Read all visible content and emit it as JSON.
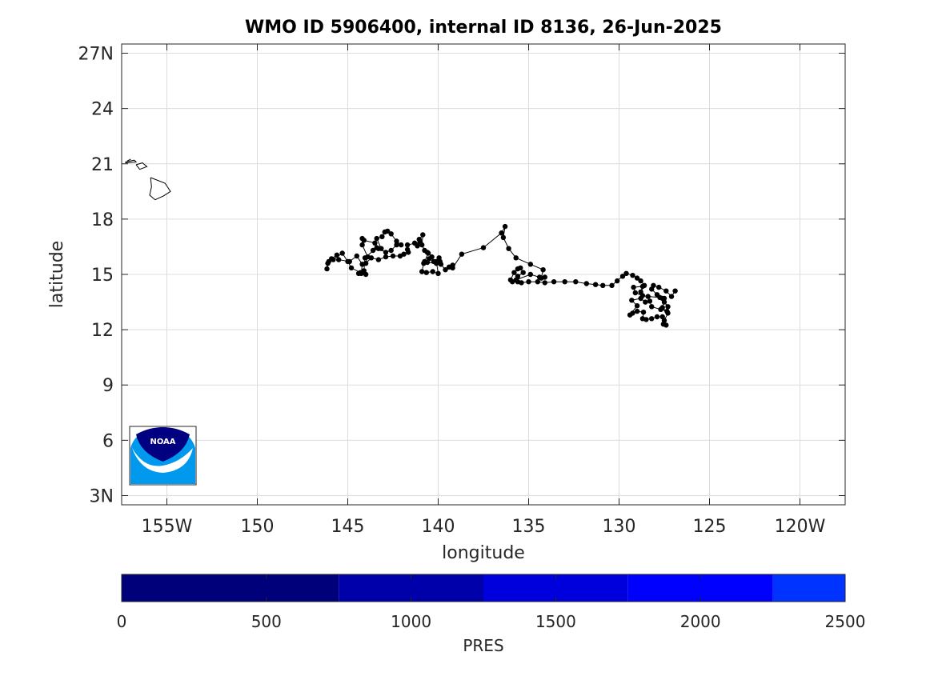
{
  "title": "WMO ID 5906400, internal ID 8136, 26-Jun-2025",
  "logo_text": "NOAA",
  "icons": {
    "logo": "noaa-logo-icon"
  },
  "colors": {
    "track": "#000000",
    "grid": "#dcdcdc",
    "frame": "#262626",
    "logo_top": "#000080",
    "logo_bottom": "#0099ee"
  },
  "chart_data": {
    "type": "scatter",
    "title": "WMO ID 5906400, internal ID 8136, 26-Jun-2025",
    "xlabel": "longitude",
    "ylabel": "latitude",
    "xlim": [
      -157.5,
      -117.5
    ],
    "ylim": [
      2.5,
      27.5
    ],
    "grid": true,
    "x_ticks": [
      {
        "value": -155,
        "label": "155W"
      },
      {
        "value": -150,
        "label": "150"
      },
      {
        "value": -145,
        "label": "145"
      },
      {
        "value": -140,
        "label": "140"
      },
      {
        "value": -135,
        "label": "135"
      },
      {
        "value": -130,
        "label": "130"
      },
      {
        "value": -125,
        "label": "125"
      },
      {
        "value": -120,
        "label": "120W"
      }
    ],
    "y_ticks": [
      {
        "value": 3,
        "label": "3N"
      },
      {
        "value": 6,
        "label": "6"
      },
      {
        "value": 9,
        "label": "9"
      },
      {
        "value": 12,
        "label": "12"
      },
      {
        "value": 15,
        "label": "15"
      },
      {
        "value": 18,
        "label": "18"
      },
      {
        "value": 21,
        "label": "21"
      },
      {
        "value": 24,
        "label": "24"
      },
      {
        "value": 27,
        "label": "27N"
      }
    ],
    "islands": [
      [
        [
          -155.9,
          20.25
        ],
        [
          -155.1,
          19.95
        ],
        [
          -154.8,
          19.5
        ],
        [
          -155.2,
          19.25
        ],
        [
          -155.65,
          19.05
        ],
        [
          -155.95,
          19.3
        ],
        [
          -155.85,
          19.75
        ],
        [
          -155.9,
          20.25
        ]
      ],
      [
        [
          -156.7,
          20.95
        ],
        [
          -156.35,
          21.05
        ],
        [
          -156.1,
          20.85
        ],
        [
          -156.5,
          20.7
        ],
        [
          -156.7,
          20.95
        ]
      ],
      [
        [
          -157.3,
          21.1
        ],
        [
          -156.8,
          21.2
        ],
        [
          -156.7,
          21.1
        ],
        [
          -157.3,
          21.05
        ]
      ],
      [
        [
          -157.2,
          21.15
        ],
        [
          -157.0,
          21.25
        ]
      ]
    ],
    "series": [
      {
        "points": [
          [
            -126.9,
            14.1
          ],
          [
            -127.1,
            13.8
          ],
          [
            -127.4,
            14.1
          ],
          [
            -127.8,
            14.3
          ],
          [
            -128.1,
            14.4
          ],
          [
            -128.2,
            14.2
          ],
          [
            -127.9,
            13.9
          ],
          [
            -127.5,
            13.7
          ],
          [
            -127.6,
            13.2
          ],
          [
            -127.3,
            12.9
          ],
          [
            -127.5,
            12.5
          ],
          [
            -127.4,
            12.25
          ],
          [
            -127.55,
            12.3
          ],
          [
            -127.6,
            12.7
          ],
          [
            -127.9,
            12.7
          ],
          [
            -128.2,
            12.6
          ],
          [
            -128.5,
            12.55
          ],
          [
            -128.7,
            12.6
          ],
          [
            -128.65,
            12.95
          ],
          [
            -129.0,
            13.0
          ],
          [
            -129.25,
            12.9
          ],
          [
            -129.4,
            12.8
          ],
          [
            -129.0,
            13.3
          ],
          [
            -129.3,
            13.6
          ],
          [
            -128.8,
            13.7
          ],
          [
            -128.55,
            13.5
          ],
          [
            -128.3,
            13.55
          ],
          [
            -128.2,
            13.25
          ],
          [
            -127.7,
            13.1
          ],
          [
            -127.35,
            13.0
          ],
          [
            -127.3,
            13.25
          ],
          [
            -127.5,
            13.5
          ],
          [
            -127.6,
            13.7
          ],
          [
            -127.75,
            13.75
          ],
          [
            -128.4,
            13.8
          ],
          [
            -128.7,
            13.85
          ],
          [
            -129.1,
            14.0
          ],
          [
            -129.2,
            14.3
          ],
          [
            -128.7,
            14.35
          ],
          [
            -128.8,
            14.05
          ],
          [
            -128.6,
            14.4
          ],
          [
            -128.8,
            14.65
          ],
          [
            -129.0,
            14.8
          ],
          [
            -129.25,
            14.95
          ],
          [
            -129.6,
            15.05
          ],
          [
            -129.8,
            14.9
          ],
          [
            -130.1,
            14.65
          ],
          [
            -130.4,
            14.4
          ],
          [
            -130.9,
            14.4
          ],
          [
            -131.3,
            14.45
          ],
          [
            -131.8,
            14.5
          ],
          [
            -132.4,
            14.6
          ],
          [
            -133.0,
            14.6
          ],
          [
            -133.6,
            14.6
          ],
          [
            -134.1,
            14.55
          ],
          [
            -134.5,
            14.6
          ],
          [
            -135.0,
            14.6
          ],
          [
            -135.4,
            14.55
          ],
          [
            -135.6,
            14.6
          ],
          [
            -135.9,
            14.6
          ],
          [
            -136.0,
            14.7
          ],
          [
            -135.8,
            15.1
          ],
          [
            -135.6,
            15.3
          ],
          [
            -135.45,
            15.35
          ],
          [
            -135.3,
            15.1
          ],
          [
            -135.6,
            14.9
          ],
          [
            -135.7,
            14.7
          ],
          [
            -134.9,
            15.0
          ],
          [
            -134.4,
            14.85
          ],
          [
            -134.1,
            14.85
          ],
          [
            -134.3,
            14.8
          ],
          [
            -134.2,
            15.25
          ],
          [
            -134.9,
            15.55
          ],
          [
            -135.7,
            15.9
          ],
          [
            -136.1,
            16.4
          ],
          [
            -136.4,
            17.0
          ],
          [
            -136.3,
            17.6
          ],
          [
            -136.5,
            17.25
          ],
          [
            -137.5,
            16.45
          ],
          [
            -138.7,
            16.1
          ],
          [
            -139.2,
            15.35
          ],
          [
            -139.2,
            15.5
          ],
          [
            -139.4,
            15.4
          ],
          [
            -139.6,
            15.25
          ],
          [
            -139.85,
            15.55
          ],
          [
            -139.95,
            15.9
          ],
          [
            -140.1,
            15.7
          ],
          [
            -140.0,
            15.05
          ],
          [
            -140.3,
            15.15
          ],
          [
            -140.65,
            15.1
          ],
          [
            -140.9,
            15.15
          ],
          [
            -140.8,
            15.6
          ],
          [
            -140.5,
            15.85
          ],
          [
            -140.25,
            15.7
          ],
          [
            -139.9,
            15.7
          ],
          [
            -140.1,
            15.6
          ],
          [
            -140.6,
            15.65
          ],
          [
            -140.75,
            15.7
          ],
          [
            -140.55,
            16.15
          ],
          [
            -140.35,
            15.95
          ],
          [
            -140.6,
            16.2
          ],
          [
            -140.75,
            16.3
          ],
          [
            -140.9,
            16.6
          ],
          [
            -140.85,
            17.15
          ],
          [
            -141.05,
            16.9
          ],
          [
            -141.15,
            16.55
          ],
          [
            -141.3,
            16.7
          ],
          [
            -141.0,
            16.75
          ],
          [
            -141.7,
            16.6
          ],
          [
            -141.7,
            16.35
          ],
          [
            -141.65,
            16.2
          ],
          [
            -141.9,
            16.1
          ],
          [
            -142.1,
            16.0
          ],
          [
            -142.5,
            16.0
          ],
          [
            -142.9,
            15.95
          ],
          [
            -143.3,
            15.8
          ],
          [
            -143.7,
            15.9
          ],
          [
            -144.0,
            15.6
          ],
          [
            -143.9,
            15.95
          ],
          [
            -144.2,
            16.6
          ],
          [
            -144.2,
            16.95
          ],
          [
            -144.1,
            16.85
          ],
          [
            -143.5,
            16.7
          ],
          [
            -143.3,
            16.4
          ],
          [
            -142.9,
            16.2
          ],
          [
            -142.6,
            16.3
          ],
          [
            -142.3,
            16.6
          ],
          [
            -142.05,
            16.6
          ],
          [
            -142.3,
            16.8
          ],
          [
            -142.6,
            17.2
          ],
          [
            -142.8,
            17.35
          ],
          [
            -142.95,
            17.3
          ],
          [
            -143.1,
            17.05
          ],
          [
            -143.4,
            16.95
          ],
          [
            -143.15,
            16.4
          ],
          [
            -143.6,
            16.3
          ],
          [
            -143.4,
            16.45
          ],
          [
            -144.05,
            15.9
          ],
          [
            -144.1,
            15.2
          ],
          [
            -144.4,
            15.05
          ],
          [
            -144.0,
            15.0
          ],
          [
            -144.25,
            15.05
          ],
          [
            -144.2,
            15.55
          ],
          [
            -144.5,
            16.0
          ],
          [
            -144.9,
            15.7
          ],
          [
            -145.5,
            15.8
          ],
          [
            -145.6,
            16.05
          ],
          [
            -145.9,
            15.85
          ],
          [
            -146.1,
            15.6
          ],
          [
            -146.15,
            15.3
          ],
          [
            -146.05,
            15.7
          ],
          [
            -145.8,
            15.8
          ],
          [
            -145.3,
            16.15
          ],
          [
            -145.0,
            15.7
          ],
          [
            -144.8,
            15.35
          ],
          [
            -144.3,
            15.1
          ]
        ]
      }
    ]
  },
  "colorbar": {
    "label": "PRES",
    "min": 0,
    "max": 2500,
    "ticks": [
      {
        "value": 0,
        "label": "0"
      },
      {
        "value": 500,
        "label": "500"
      },
      {
        "value": 1000,
        "label": "1000"
      },
      {
        "value": 1500,
        "label": "1500"
      },
      {
        "value": 2000,
        "label": "2000"
      },
      {
        "value": 2500,
        "label": "2500"
      }
    ],
    "segments": [
      {
        "from": 0,
        "to": 750,
        "color": "#00007a"
      },
      {
        "from": 750,
        "to": 1250,
        "color": "#0000aa"
      },
      {
        "from": 1250,
        "to": 1750,
        "color": "#0000dd"
      },
      {
        "from": 1750,
        "to": 2250,
        "color": "#0000ff"
      },
      {
        "from": 2250,
        "to": 2500,
        "color": "#0033ff"
      }
    ]
  }
}
